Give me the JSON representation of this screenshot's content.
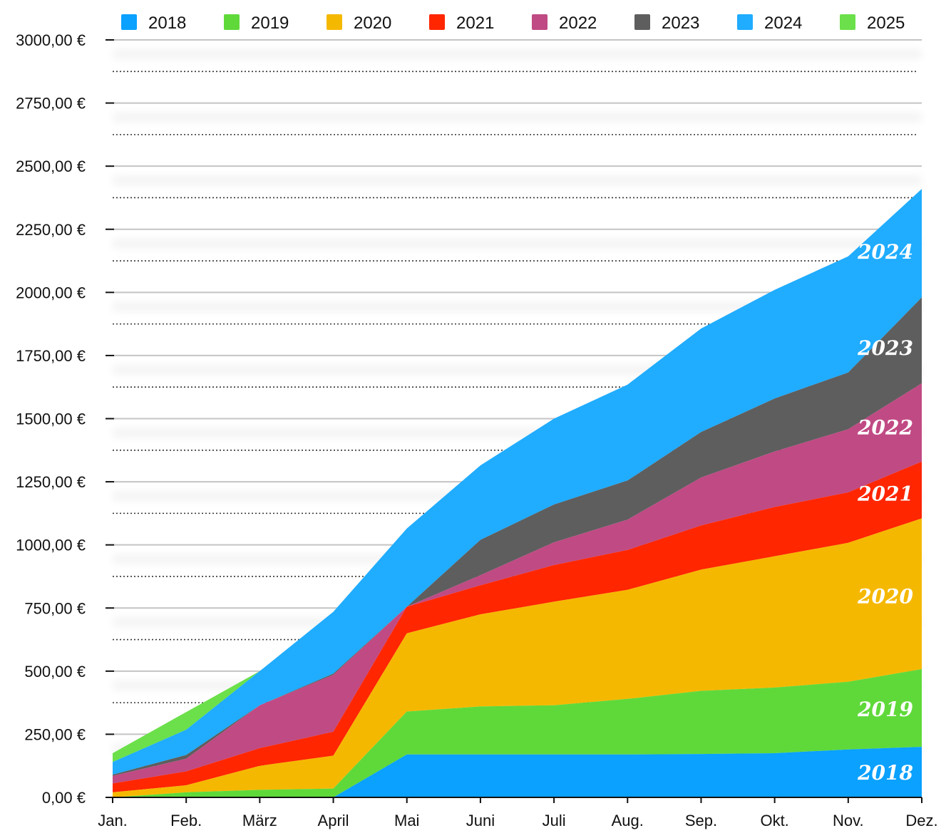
{
  "chart_data": {
    "type": "area",
    "stacked": true,
    "title": "",
    "xlabel": "",
    "ylabel": "",
    "ylim": [
      0,
      3000
    ],
    "y_ticks": [
      0,
      250,
      500,
      750,
      1000,
      1250,
      1500,
      1750,
      2000,
      2250,
      2500,
      2750,
      3000
    ],
    "y_tick_labels": [
      "0,00 €",
      "250,00 €",
      "500,00 €",
      "750,00 €",
      "1000,00 €",
      "1250,00 €",
      "1500,00 €",
      "1750,00 €",
      "2000,00 €",
      "2250,00 €",
      "2500,00 €",
      "2750,00 €",
      "3000,00 €"
    ],
    "categories": [
      "Jan.",
      "Feb.",
      "März",
      "April",
      "Mai",
      "Juni",
      "Juli",
      "Aug.",
      "Sep.",
      "Okt.",
      "Nov.",
      "Dez."
    ],
    "legend_position": "top",
    "grid": "horizontal",
    "series": [
      {
        "name": "2018",
        "color": "#0aa1ff",
        "label_visible": "2018",
        "values": [
          0,
          0,
          0,
          0,
          170,
          170,
          170,
          170,
          172,
          175,
          190,
          200
        ]
      },
      {
        "name": "2019",
        "color": "#5fd93a",
        "label_visible": "2019",
        "values": [
          0,
          20,
          30,
          35,
          170,
          190,
          195,
          220,
          250,
          260,
          268,
          308
        ]
      },
      {
        "name": "2020",
        "color": "#f5b800",
        "label_visible": "2020",
        "values": [
          20,
          28,
          95,
          130,
          310,
          365,
          410,
          432,
          480,
          520,
          550,
          597
        ]
      },
      {
        "name": "2021",
        "color": "#ff2600",
        "label_visible": "2021",
        "values": [
          35,
          55,
          70,
          95,
          105,
          115,
          145,
          158,
          175,
          195,
          200,
          225
        ]
      },
      {
        "name": "2022",
        "color": "#c04a84",
        "label_visible": "2022",
        "values": [
          30,
          50,
          170,
          225,
          0,
          40,
          90,
          120,
          190,
          220,
          250,
          310
        ]
      },
      {
        "name": "2023",
        "color": "#5e5e5e",
        "label_visible": "2023",
        "values": [
          5,
          15,
          0,
          5,
          0,
          140,
          150,
          155,
          180,
          210,
          225,
          340
        ]
      },
      {
        "name": "2024",
        "color": "#20acff",
        "label_visible": "2024",
        "values": [
          50,
          100,
          135,
          245,
          310,
          295,
          340,
          380,
          410,
          430,
          460,
          430
        ]
      },
      {
        "name": "2025",
        "color": "#6be04a",
        "label_visible": "",
        "values": [
          35,
          70,
          0,
          0,
          0,
          0,
          0,
          0,
          0,
          0,
          0,
          0
        ]
      }
    ]
  }
}
